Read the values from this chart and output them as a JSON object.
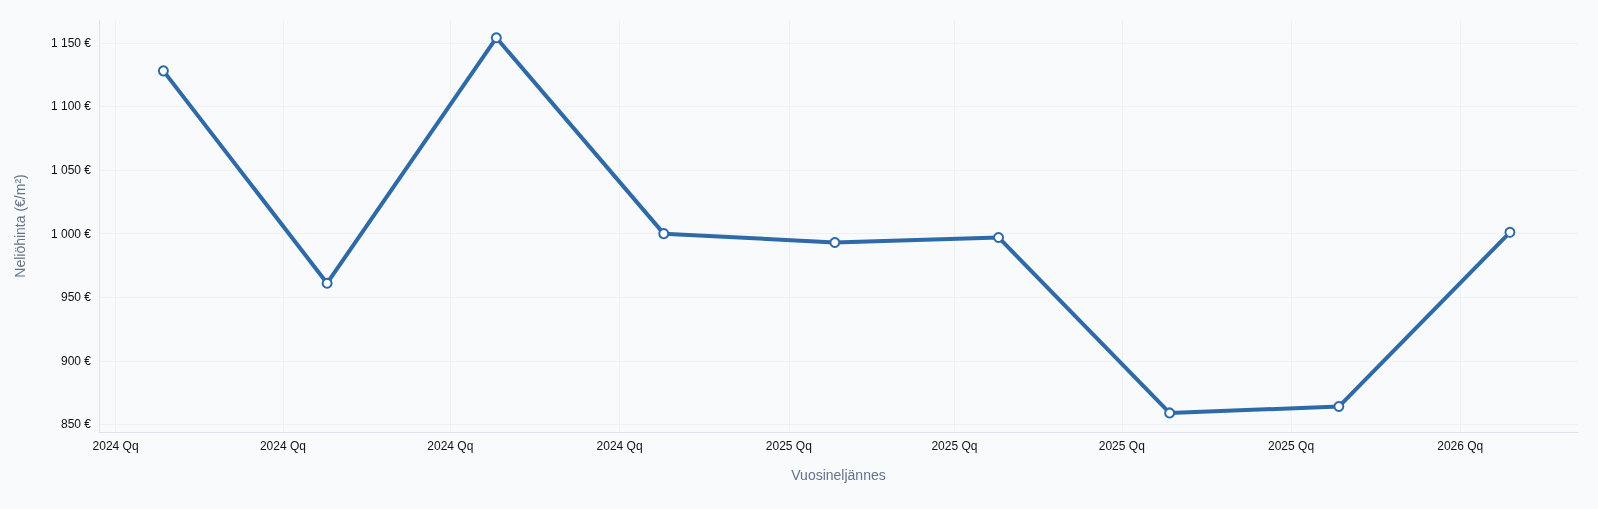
{
  "chart_data": {
    "type": "line",
    "xlabel": "Vuosineljännes",
    "ylabel": "Neliöhinta (€/m²)",
    "x": [
      "2024-01-27",
      "2024-04-25",
      "2024-07-26",
      "2024-10-25",
      "2025-01-26",
      "2025-04-25",
      "2025-07-27",
      "2025-10-27",
      "2026-01-28"
    ],
    "series": [
      {
        "color": "#2e6aa8",
        "values": [
          1128,
          961,
          1154,
          1000,
          993,
          997,
          859,
          864,
          1001
        ]
      }
    ],
    "xlim": [
      "2023-12-23",
      "2026-03-06"
    ],
    "xticks": [
      {
        "value": "2024-01-01",
        "label": "2024 Qq"
      },
      {
        "value": "2024-04-01",
        "label": "2024 Qq"
      },
      {
        "value": "2024-07-01",
        "label": "2024 Qq"
      },
      {
        "value": "2024-10-01",
        "label": "2024 Qq"
      },
      {
        "value": "2025-01-01",
        "label": "2025 Qq"
      },
      {
        "value": "2025-04-01",
        "label": "2025 Qq"
      },
      {
        "value": "2025-07-01",
        "label": "2025 Qq"
      },
      {
        "value": "2025-10-01",
        "label": "2025 Qq"
      },
      {
        "value": "2026-01-01",
        "label": "2026 Qq"
      }
    ],
    "ylim": [
      844,
      1168
    ],
    "yticks": [
      {
        "value": 850,
        "label": "850 €"
      },
      {
        "value": 900,
        "label": "900 €"
      },
      {
        "value": 950,
        "label": "950 €"
      },
      {
        "value": 1000,
        "label": "1 000 €"
      },
      {
        "value": 1050,
        "label": "1 050 €"
      },
      {
        "value": 1100,
        "label": "1 100 €"
      },
      {
        "value": 1150,
        "label": "1 150 €"
      }
    ],
    "grid": true,
    "marker": "circle",
    "line_style": "solid"
  }
}
